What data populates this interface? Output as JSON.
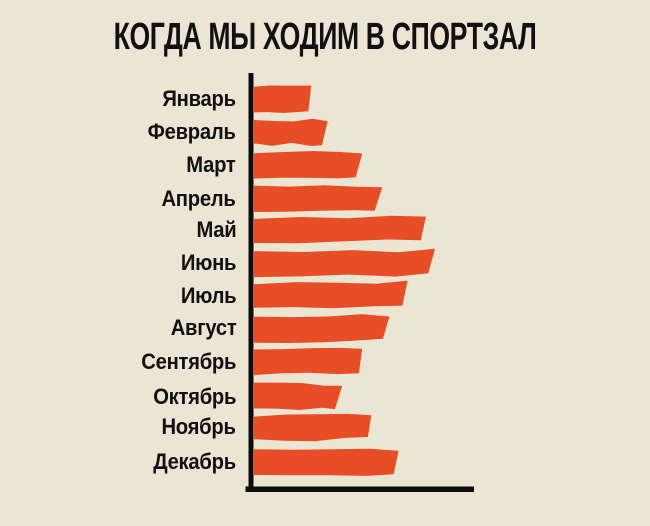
{
  "title": "КОГДА МЫ ХОДИМ В СПОРТЗАЛ",
  "colors": {
    "background": "#EBE6D3",
    "bar": "#E84E25",
    "ink": "#111111",
    "axis": "#0D0D0D"
  },
  "chart_data": {
    "type": "bar",
    "orientation": "horizontal",
    "title": "КОГДА МЫ ХОДИМ В СПОРТЗАЛ",
    "categories": [
      "Январь",
      "Февраль",
      "Март",
      "Апрель",
      "Май",
      "Июнь",
      "Июль",
      "Август",
      "Сентябрь",
      "Октябрь",
      "Ноябрь",
      "Декабрь"
    ],
    "values": [
      32,
      41,
      60,
      71,
      95,
      100,
      85,
      75,
      60,
      49,
      65,
      80
    ],
    "value_unit": "percent_of_max_month",
    "xlabel": "",
    "ylabel": "",
    "axis_style": "L-shaped black axis, no ticks, no gridlines, no value labels",
    "bar_style": "hand-drawn rough brush-stroke bars",
    "legend": "none"
  }
}
